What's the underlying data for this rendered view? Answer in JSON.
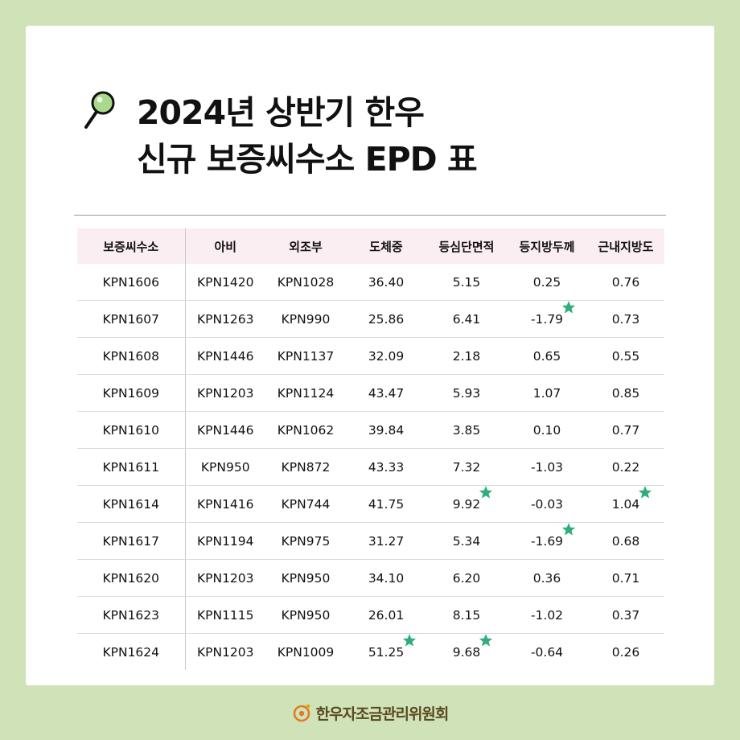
{
  "title": {
    "line1": "2024년 상반기 한우",
    "line2": "신규 보증씨수소 EPD 표"
  },
  "icons": {
    "title_icon": "magnifier-icon",
    "highlight_icon": "star-icon",
    "footer_logo": "hanwoo-logo"
  },
  "colors": {
    "page_bg": "#cfe2b8",
    "header_bg": "#fbeef2",
    "star": "#2fae7c",
    "magnifier_lens": "#a9d98b"
  },
  "table": {
    "headers": [
      "보증씨수소",
      "아비",
      "외조부",
      "도체중",
      "등심단면적",
      "등지방두께",
      "근내지방도"
    ],
    "rows": [
      {
        "cells": [
          "KPN1606",
          "KPN1420",
          "KPN1028",
          "36.40",
          "5.15",
          "0.25",
          "0.76"
        ],
        "stars": []
      },
      {
        "cells": [
          "KPN1607",
          "KPN1263",
          "KPN990",
          "25.86",
          "6.41",
          "-1.79",
          "0.73"
        ],
        "stars": [
          5
        ]
      },
      {
        "cells": [
          "KPN1608",
          "KPN1446",
          "KPN1137",
          "32.09",
          "2.18",
          "0.65",
          "0.55"
        ],
        "stars": []
      },
      {
        "cells": [
          "KPN1609",
          "KPN1203",
          "KPN1124",
          "43.47",
          "5.93",
          "1.07",
          "0.85"
        ],
        "stars": []
      },
      {
        "cells": [
          "KPN1610",
          "KPN1446",
          "KPN1062",
          "39.84",
          "3.85",
          "0.10",
          "0.77"
        ],
        "stars": []
      },
      {
        "cells": [
          "KPN1611",
          "KPN950",
          "KPN872",
          "43.33",
          "7.32",
          "-1.03",
          "0.22"
        ],
        "stars": []
      },
      {
        "cells": [
          "KPN1614",
          "KPN1416",
          "KPN744",
          "41.75",
          "9.92",
          "-0.03",
          "1.04"
        ],
        "stars": [
          4,
          6
        ]
      },
      {
        "cells": [
          "KPN1617",
          "KPN1194",
          "KPN975",
          "31.27",
          "5.34",
          "-1.69",
          "0.68"
        ],
        "stars": [
          5
        ]
      },
      {
        "cells": [
          "KPN1620",
          "KPN1203",
          "KPN950",
          "34.10",
          "6.20",
          "0.36",
          "0.71"
        ],
        "stars": []
      },
      {
        "cells": [
          "KPN1623",
          "KPN1115",
          "KPN950",
          "26.01",
          "8.15",
          "-1.02",
          "0.37"
        ],
        "stars": []
      },
      {
        "cells": [
          "KPN1624",
          "KPN1203",
          "KPN1009",
          "51.25",
          "9.68",
          "-0.64",
          "0.26"
        ],
        "stars": [
          3,
          4
        ]
      }
    ]
  },
  "footer": {
    "org_name": "한우자조금관리위원회"
  }
}
